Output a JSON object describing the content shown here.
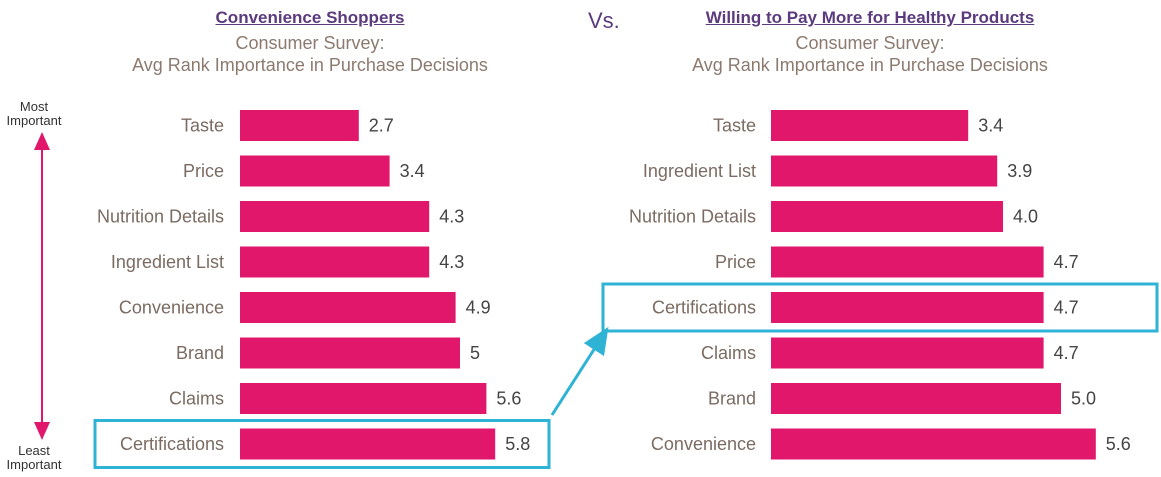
{
  "vs_label": "Vs.",
  "axis_top_label": "Most Important",
  "axis_bottom_label": "Least Important",
  "colors": {
    "bar": "#e0176b",
    "highlight": "#2fb3d4",
    "title": "#5b3a7e",
    "subtitle": "#8c7a6f"
  },
  "chart_data": [
    {
      "type": "bar",
      "orientation": "horizontal",
      "header": "Convenience Shoppers",
      "title": "Consumer Survey:",
      "subtitle": "Avg Rank Importance in Purchase Decisions",
      "categories": [
        "Taste",
        "Price",
        "Nutrition Details",
        "Ingredient List",
        "Convenience",
        "Brand",
        "Claims",
        "Certifications"
      ],
      "values": [
        2.7,
        3.4,
        4.3,
        4.3,
        4.9,
        5,
        5.6,
        5.8
      ],
      "value_labels": [
        "2.7",
        "3.4",
        "4.3",
        "4.3",
        "4.9",
        "5",
        "5.6",
        "5.8"
      ],
      "highlighted_category": "Certifications"
    },
    {
      "type": "bar",
      "orientation": "horizontal",
      "header": "Willing to Pay More for Healthy Products",
      "title": "Consumer Survey:",
      "subtitle": "Avg Rank Importance in Purchase Decisions",
      "categories": [
        "Taste",
        "Ingredient List",
        "Nutrition Details",
        "Price",
        "Certifications",
        "Claims",
        "Brand",
        "Convenience"
      ],
      "values": [
        3.4,
        3.9,
        4.0,
        4.7,
        4.7,
        4.7,
        5.0,
        5.6
      ],
      "value_labels": [
        "3.4",
        "3.9",
        "4.0",
        "4.7",
        "4.7",
        "4.7",
        "5.0",
        "5.6"
      ],
      "highlighted_category": "Certifications"
    }
  ]
}
